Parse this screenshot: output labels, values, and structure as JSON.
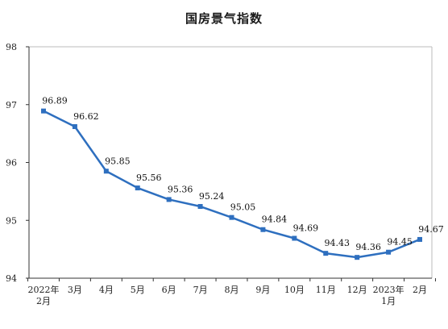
{
  "chart_data": {
    "type": "line",
    "title": "国房景气指数",
    "xlabel": "",
    "ylabel": "",
    "ylim": [
      94,
      98
    ],
    "yticks": [
      94,
      95,
      96,
      97,
      98
    ],
    "categories": [
      [
        "2022年",
        "2月"
      ],
      [
        "3月"
      ],
      [
        "4月"
      ],
      [
        "5月"
      ],
      [
        "6月"
      ],
      [
        "7月"
      ],
      [
        "8月"
      ],
      [
        "9月"
      ],
      [
        "10月"
      ],
      [
        "11月"
      ],
      [
        "12月"
      ],
      [
        "2023年",
        "1月"
      ],
      [
        "2月"
      ]
    ],
    "series": [
      {
        "values": [
          96.89,
          96.62,
          95.85,
          95.56,
          95.36,
          95.24,
          95.05,
          94.84,
          94.69,
          94.43,
          94.36,
          94.45,
          94.67
        ],
        "labels": [
          "96.89",
          "96.62",
          "95.85",
          "95.56",
          "95.36",
          "95.24",
          "95.05",
          "94.84",
          "94.69",
          "94.43",
          "94.36",
          "94.45",
          "94.67"
        ]
      }
    ],
    "grid": false,
    "legend": "none",
    "colors": {
      "line": "#2e6fbf",
      "axis": "#333333",
      "frame": "#bbbbbb"
    }
  }
}
